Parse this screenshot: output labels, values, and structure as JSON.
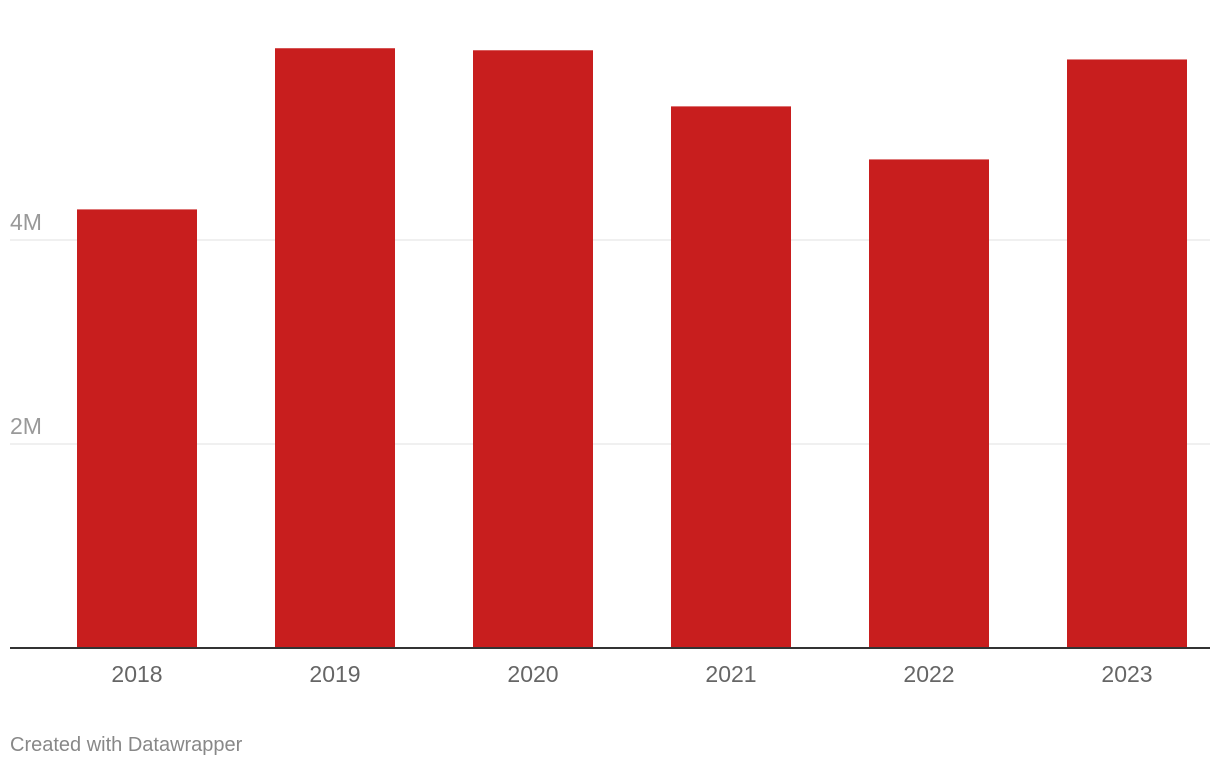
{
  "chart_data": {
    "type": "bar",
    "categories": [
      "2018",
      "2019",
      "2020",
      "2021",
      "2022",
      "2023"
    ],
    "values": [
      4300000,
      5880000,
      5860000,
      5310000,
      4790000,
      5770000
    ],
    "ylim": [
      0,
      6000000
    ],
    "yticks": [
      {
        "value": 2000000,
        "label": "2M"
      },
      {
        "value": 4000000,
        "label": "4M"
      }
    ],
    "grid": true,
    "bar_color": "#c81e1e",
    "title": "",
    "xlabel": "",
    "ylabel": ""
  },
  "footer": {
    "credit": "Created with Datawrapper"
  }
}
